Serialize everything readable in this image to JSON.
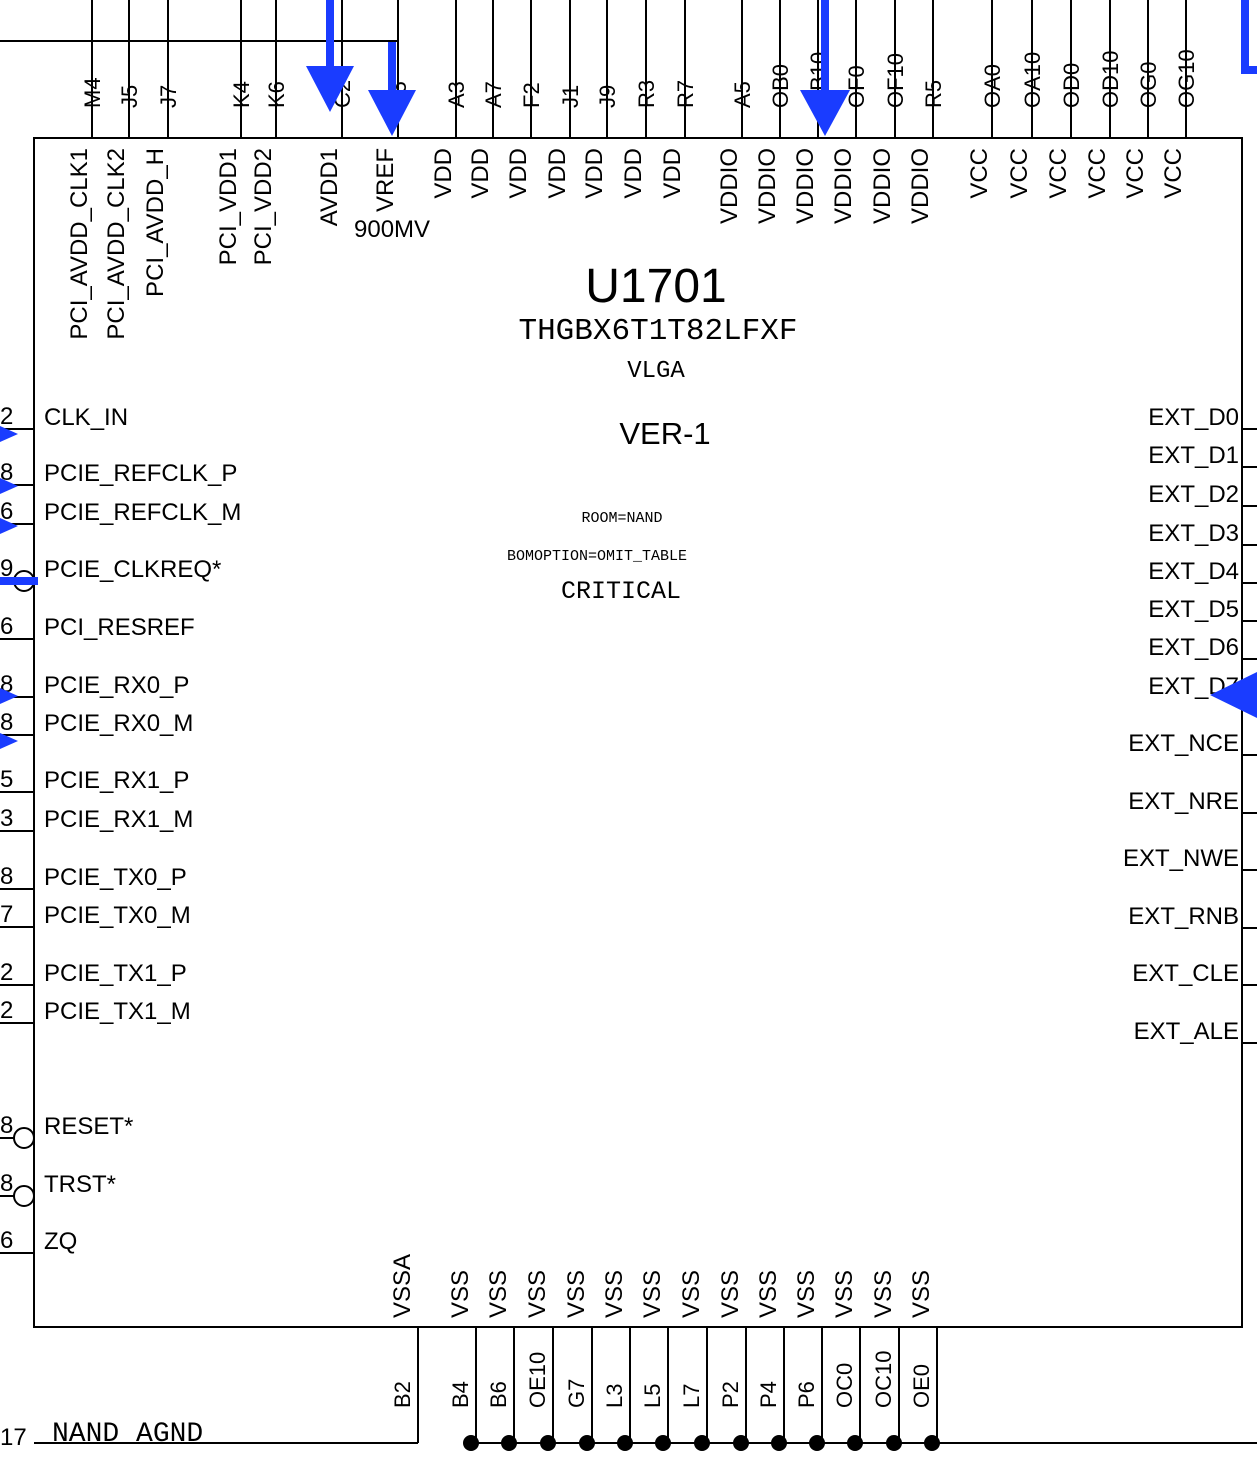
{
  "chip": {
    "refdes": "U1701",
    "part_number": "THGBX6T1T82LFXF",
    "package": "VLGA",
    "version": "VER-1",
    "room": "ROOM=NAND",
    "bom_option": "BOMOPTION=OMIT_TABLE",
    "critical": "CRITICAL"
  },
  "top_pins": [
    {
      "id": "M4",
      "name": "PCI_AVDD_CLK1"
    },
    {
      "id": "J5",
      "name": "PCI_AVDD_CLK2"
    },
    {
      "id": "J7",
      "name": "PCI_AVDD_H"
    },
    {
      "id": "K4",
      "name": "PCI_VDD1"
    },
    {
      "id": "K6",
      "name": "PCI_VDD2"
    },
    {
      "id": "C2",
      "name": "AVDD1"
    },
    {
      "id": "E5",
      "name": "VREF"
    },
    {
      "id": "A3",
      "name": "VDD"
    },
    {
      "id": "A7",
      "name": "VDD"
    },
    {
      "id": "F2",
      "name": "VDD"
    },
    {
      "id": "J1",
      "name": "VDD"
    },
    {
      "id": "J9",
      "name": "VDD"
    },
    {
      "id": "R3",
      "name": "VDD"
    },
    {
      "id": "R7",
      "name": "VDD"
    },
    {
      "id": "A5",
      "name": "VDDIO"
    },
    {
      "id": "OB0",
      "name": "VDDIO"
    },
    {
      "id": "OB10",
      "name": "VDDIO"
    },
    {
      "id": "OF0",
      "name": "VDDIO"
    },
    {
      "id": "OF10",
      "name": "VDDIO"
    },
    {
      "id": "R5",
      "name": "VDDIO"
    },
    {
      "id": "OA0",
      "name": "VCC"
    },
    {
      "id": "OA10",
      "name": "VCC"
    },
    {
      "id": "OD0",
      "name": "VCC"
    },
    {
      "id": "OD10",
      "name": "VCC"
    },
    {
      "id": "OG0",
      "name": "VCC"
    },
    {
      "id": "OG10",
      "name": "VCC"
    }
  ],
  "vref_note": "900MV",
  "left_pins": [
    {
      "num": "2",
      "name": "CLK_IN"
    },
    {
      "num": "8",
      "name": "PCIE_REFCLK_P"
    },
    {
      "num": "6",
      "name": "PCIE_REFCLK_M"
    },
    {
      "num": "9",
      "name": "PCIE_CLKREQ*"
    },
    {
      "num": "6",
      "name": "PCI_RESREF"
    },
    {
      "num": "8",
      "name": "PCIE_RX0_P"
    },
    {
      "num": "8",
      "name": "PCIE_RX0_M"
    },
    {
      "num": "5",
      "name": "PCIE_RX1_P"
    },
    {
      "num": "3",
      "name": "PCIE_RX1_M"
    },
    {
      "num": "8",
      "name": "PCIE_TX0_P"
    },
    {
      "num": "7",
      "name": "PCIE_TX0_M"
    },
    {
      "num": "2",
      "name": "PCIE_TX1_P"
    },
    {
      "num": "2",
      "name": "PCIE_TX1_M"
    },
    {
      "num": "8",
      "name": "RESET*"
    },
    {
      "num": "8",
      "name": "TRST*"
    },
    {
      "num": "6",
      "name": "ZQ"
    }
  ],
  "right_pins": [
    "EXT_D0",
    "EXT_D1",
    "EXT_D2",
    "EXT_D3",
    "EXT_D4",
    "EXT_D5",
    "EXT_D6",
    "EXT_D7",
    "EXT_NCE",
    "EXT_NRE",
    "EXT_NWE",
    "EXT_RNB",
    "EXT_CLE",
    "EXT_ALE"
  ],
  "bottom_pins": [
    {
      "id": "B2",
      "name": "VSSA"
    },
    {
      "id": "B4",
      "name": "VSS"
    },
    {
      "id": "B6",
      "name": "VSS"
    },
    {
      "id": "OE10",
      "name": "VSS"
    },
    {
      "id": "G7",
      "name": "VSS"
    },
    {
      "id": "L3",
      "name": "VSS"
    },
    {
      "id": "L5",
      "name": "VSS"
    },
    {
      "id": "L7",
      "name": "VSS"
    },
    {
      "id": "P2",
      "name": "VSS"
    },
    {
      "id": "P4",
      "name": "VSS"
    },
    {
      "id": "P6",
      "name": "VSS"
    },
    {
      "id": "OC0",
      "name": "VSS"
    },
    {
      "id": "OC10",
      "name": "VSS"
    },
    {
      "id": "OE0",
      "name": "VSS"
    }
  ],
  "nets": {
    "agnd_label": "NAND_AGND",
    "agnd_ref": "17"
  },
  "colors": {
    "arrow": "#1a3cff",
    "line": "#000000"
  }
}
